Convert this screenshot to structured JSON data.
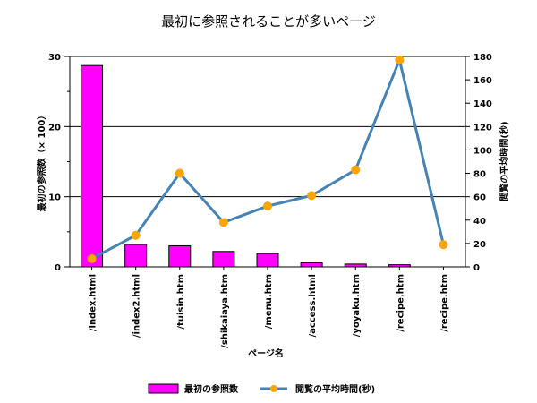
{
  "chart_data": {
    "type": "bar+line",
    "title": "最初に参照されることが多いページ",
    "xlabel": "ページ名",
    "ylabel_left": "最初の参照数（× 100）",
    "ylabel_right": "閲覧の平均時間(秒)",
    "ylim_left": [
      0,
      30
    ],
    "ylim_right": [
      0,
      180
    ],
    "yticks_left": [
      "0",
      "10",
      "20",
      "30"
    ],
    "yticks_right": [
      "0",
      "20",
      "40",
      "60",
      "80",
      "100",
      "120",
      "140",
      "160",
      "180"
    ],
    "grid": true,
    "legend_position": "bottom",
    "categories": [
      "/index.html",
      "/index2.html",
      "/tuisin.htm",
      "/shikaiaya.htm",
      "/menu.htm",
      "/access.html",
      "/yoyaku.htm",
      "/recipe.htm",
      "/recipe.htm"
    ],
    "series": [
      {
        "name": "最初の参照数",
        "type": "bar",
        "axis": "left",
        "color": "#ff00ff",
        "values": [
          28.7,
          3.2,
          3.0,
          2.2,
          1.9,
          0.6,
          0.4,
          0.3,
          0
        ]
      },
      {
        "name": "閲覧の平均時間(秒)",
        "type": "line",
        "axis": "right",
        "color": "#4682b4",
        "marker_color": "#ffa500",
        "values": [
          7,
          27,
          80,
          38,
          52,
          61,
          83,
          177,
          19
        ]
      }
    ]
  }
}
